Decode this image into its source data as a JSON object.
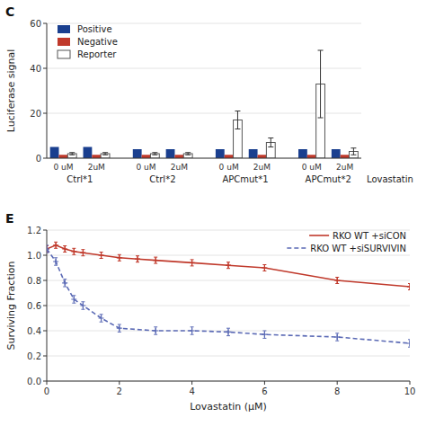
{
  "chart_data": [
    {
      "type": "bar",
      "title": "C",
      "ylabel": "Luciferase signal",
      "categories": [
        "0 uM",
        "2uM",
        "0 uM",
        "2uM",
        "0 uM",
        "2uM",
        "0 uM",
        "2uM"
      ],
      "groups": [
        "Ctrl*1",
        "Ctrl*2",
        "APCmut*1",
        "APCmut*2"
      ],
      "annotations": [
        "Lovastatin"
      ],
      "series": [
        {
          "name": "Positive",
          "color": "#1a3f8f",
          "values": [
            5,
            5,
            4,
            4,
            4,
            4,
            4,
            4
          ]
        },
        {
          "name": "Negative",
          "color": "#c0392b",
          "values": [
            1.5,
            1.5,
            1.5,
            1.5,
            1.5,
            1.5,
            1.5,
            1.5
          ]
        },
        {
          "name": "Reporter",
          "color": "#ffffff",
          "values": [
            2,
            2,
            2,
            2,
            17,
            7,
            33,
            3
          ],
          "errors": [
            0.5,
            0.5,
            0.5,
            0.5,
            4,
            2,
            15,
            1.5
          ]
        }
      ],
      "ylim": [
        0,
        60
      ],
      "yticks": [
        0,
        20,
        40,
        60
      ],
      "legend": "upper left"
    },
    {
      "type": "line",
      "title": "E",
      "xlabel": "Lovastatin (μM)",
      "ylabel": "Surviving Fraction",
      "series": [
        {
          "name": "RKO WT +siCON",
          "color": "#c0392b",
          "line_style": "solid",
          "marker": "plus",
          "x": [
            0,
            0.25,
            0.5,
            0.75,
            1,
            1.5,
            2,
            2.5,
            3,
            4,
            5,
            6,
            8,
            10
          ],
          "values": [
            1.05,
            1.08,
            1.05,
            1.03,
            1.02,
            1.0,
            0.98,
            0.97,
            0.96,
            0.94,
            0.92,
            0.9,
            0.8,
            0.75
          ],
          "error": 0.025
        },
        {
          "name": "RKO WT +siSURVIVIN",
          "color": "#5b6ab5",
          "line_style": "dashed",
          "marker": "plus",
          "x": [
            0,
            0.25,
            0.5,
            0.75,
            1,
            1.5,
            2,
            3,
            4,
            5,
            6,
            8,
            10
          ],
          "values": [
            1.05,
            0.95,
            0.78,
            0.65,
            0.6,
            0.5,
            0.42,
            0.4,
            0.4,
            0.39,
            0.37,
            0.35,
            0.3
          ],
          "error": 0.03
        }
      ],
      "xlim": [
        0,
        10
      ],
      "ylim": [
        0.0,
        1.2
      ],
      "xticks": [
        0,
        2,
        4,
        6,
        8,
        10
      ],
      "yticks": [
        {
          "value": 0,
          "label": "0.0"
        },
        0.2,
        0.4,
        0.6,
        0.8,
        {
          "value": 1,
          "label": "1.0"
        },
        1.2
      ],
      "legend": "upper right"
    }
  ]
}
